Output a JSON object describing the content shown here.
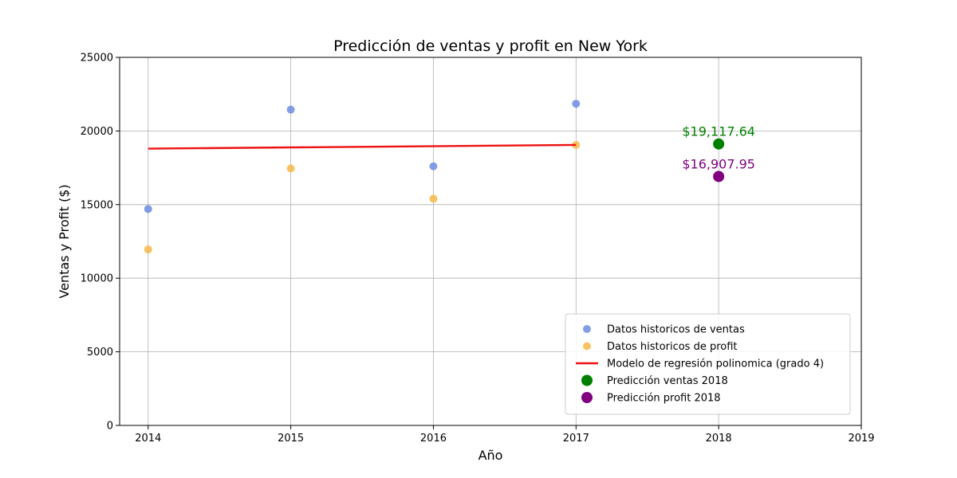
{
  "chart_data": {
    "type": "scatter",
    "title": "Predicción de ventas y profit en New York",
    "xlabel": "Año",
    "ylabel": "Ventas y Profit ($)",
    "xlim": [
      2013.8,
      2019
    ],
    "ylim": [
      0,
      25000
    ],
    "x_ticks": [
      "2014",
      "2015",
      "2016",
      "2017",
      "2018",
      "2019"
    ],
    "y_ticks": [
      "0",
      "5000",
      "10000",
      "15000",
      "20000",
      "25000"
    ],
    "grid": true,
    "legend_position": "bottom-right",
    "series": [
      {
        "name": "Datos historicos de ventas",
        "kind": "scatter",
        "color": "#6f8de0",
        "x": [
          2014,
          2015,
          2016,
          2017
        ],
        "y": [
          14700,
          21450,
          17600,
          21850
        ]
      },
      {
        "name": "Datos historicos de profit",
        "kind": "scatter",
        "color": "#f7b94a",
        "x": [
          2014,
          2015,
          2016,
          2017
        ],
        "y": [
          11950,
          17450,
          15400,
          19050
        ]
      },
      {
        "name": "Modelo de regresión polinomica (grado 4)",
        "kind": "line",
        "color": "#ee1111",
        "x": [
          2014,
          2017
        ],
        "y": [
          18800,
          19050
        ]
      },
      {
        "name": "Predicción ventas 2018",
        "kind": "point",
        "color": "#008000",
        "x": [
          2018
        ],
        "y": [
          19117.64
        ],
        "label": "$19,117.64"
      },
      {
        "name": "Predicción profit 2018",
        "kind": "point",
        "color": "#800080",
        "x": [
          2018
        ],
        "y": [
          16907.95
        ],
        "label": "$16,907.95"
      }
    ]
  }
}
